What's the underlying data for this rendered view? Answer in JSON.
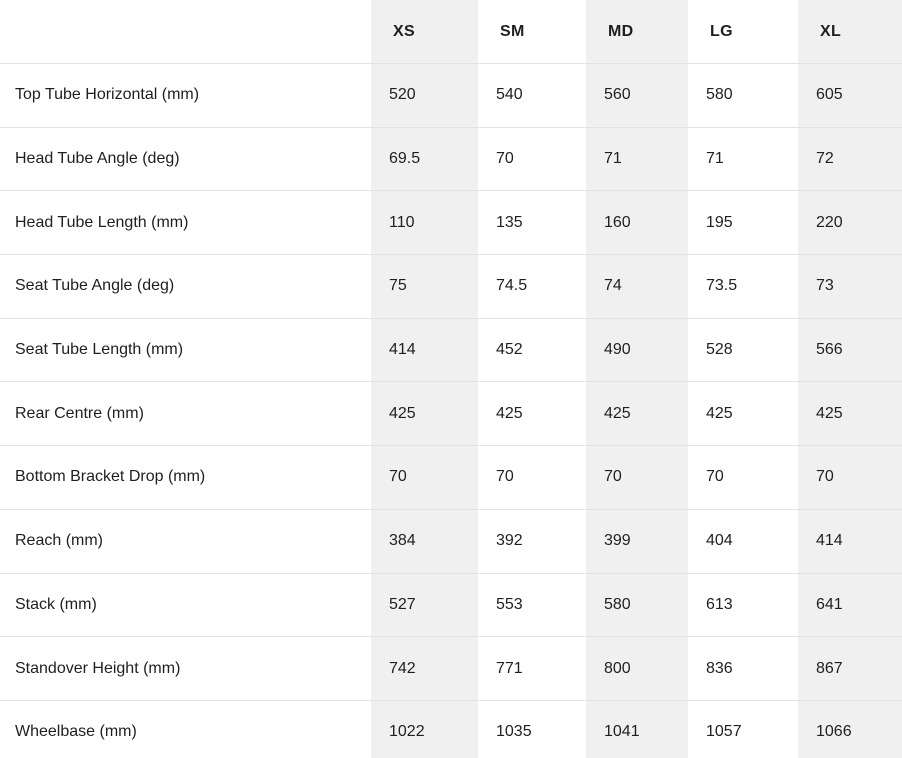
{
  "colors": {
    "stripe_background": "#f0f0f0",
    "row_divider": "#e2e2e2",
    "text": "#1f1f1f",
    "page_background": "#ffffff"
  },
  "chart_data": {
    "type": "table",
    "categories": [
      "XS",
      "SM",
      "MD",
      "LG",
      "XL"
    ],
    "series": [
      {
        "name": "Top Tube Horizontal (mm)",
        "values": [
          520,
          540,
          560,
          580,
          605
        ]
      },
      {
        "name": "Head Tube Angle (deg)",
        "values": [
          69.5,
          70,
          71,
          71,
          72
        ]
      },
      {
        "name": "Head Tube Length (mm)",
        "values": [
          110,
          135,
          160,
          195,
          220
        ]
      },
      {
        "name": "Seat Tube Angle (deg)",
        "values": [
          75,
          74.5,
          74,
          73.5,
          73
        ]
      },
      {
        "name": "Seat Tube Length (mm)",
        "values": [
          414,
          452,
          490,
          528,
          566
        ]
      },
      {
        "name": "Rear Centre (mm)",
        "values": [
          425,
          425,
          425,
          425,
          425
        ]
      },
      {
        "name": "Bottom Bracket Drop (mm)",
        "values": [
          70,
          70,
          70,
          70,
          70
        ]
      },
      {
        "name": "Reach (mm)",
        "values": [
          384,
          392,
          399,
          404,
          414
        ]
      },
      {
        "name": "Stack (mm)",
        "values": [
          527,
          553,
          580,
          613,
          641
        ]
      },
      {
        "name": "Standover Height (mm)",
        "values": [
          742,
          771,
          800,
          836,
          867
        ]
      },
      {
        "name": "Wheelbase (mm)",
        "values": [
          1022,
          1035,
          1041,
          1057,
          1066
        ]
      }
    ],
    "layout": {
      "striped_columns": [
        "XS",
        "MD",
        "XL"
      ],
      "header_row": true,
      "grid": "horizontal-dividers-only"
    }
  }
}
